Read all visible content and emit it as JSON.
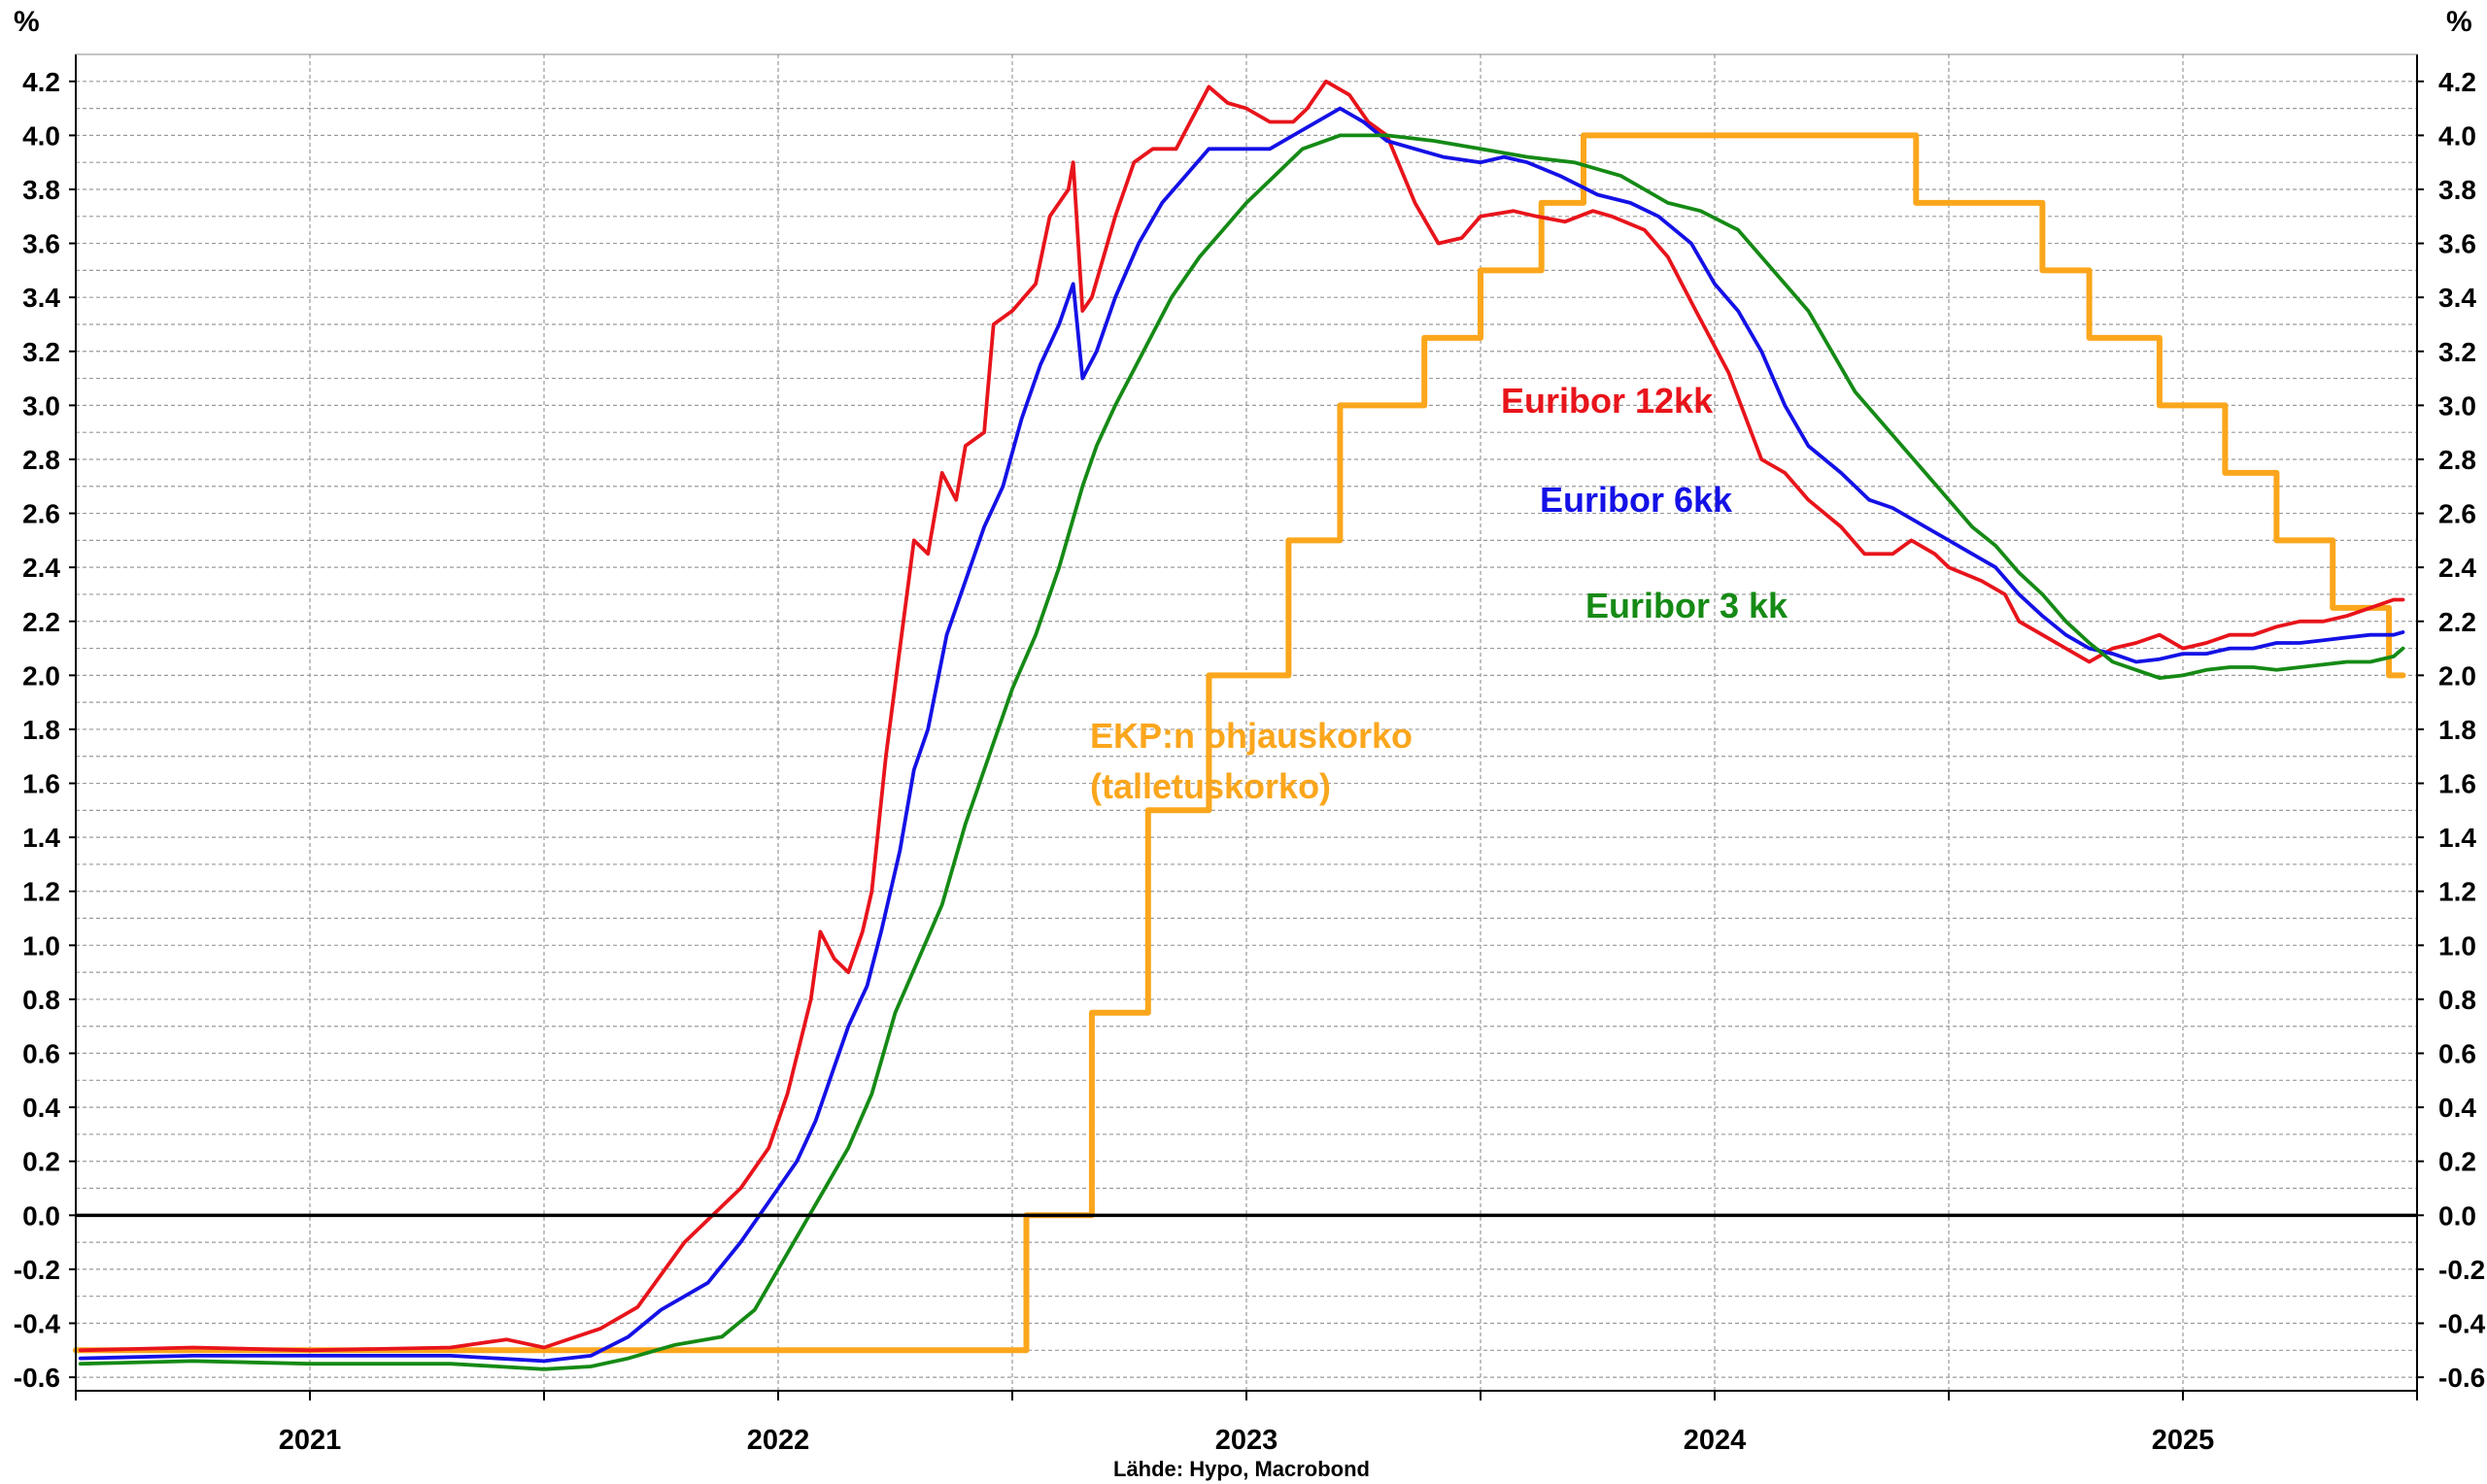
{
  "chart_data": {
    "type": "line",
    "y_unit_left": "%",
    "y_unit_right": "%",
    "source": "Lähde: Hypo, Macrobond",
    "ylim": [
      -0.65,
      4.3
    ],
    "y_ticks": [
      -0.6,
      -0.4,
      -0.2,
      0.0,
      0.2,
      0.4,
      0.6,
      0.8,
      1.0,
      1.2,
      1.4,
      1.6,
      1.8,
      2.0,
      2.2,
      2.4,
      2.6,
      2.8,
      3.0,
      3.2,
      3.4,
      3.6,
      3.8,
      4.0,
      4.2
    ],
    "y_tick_labels": [
      "-0.6",
      "-0.4",
      "-0.2",
      "0.0",
      "0.2",
      "0.4",
      "0.6",
      "0.8",
      "1.0",
      "1.2",
      "1.4",
      "1.6",
      "1.8",
      "2.0",
      "2.2",
      "2.4",
      "2.6",
      "2.8",
      "3.0",
      "3.2",
      "3.4",
      "3.6",
      "3.8",
      "4.0",
      "4.2"
    ],
    "xlim": [
      2020.5,
      2025.5
    ],
    "x_ticks": [
      2021,
      2022,
      2023,
      2024,
      2025
    ],
    "x_tick_labels": [
      "2021",
      "2022",
      "2023",
      "2024",
      "2025"
    ],
    "x_boundaries": [
      2020.5,
      2021.0,
      2021.5,
      2022.0,
      2022.5,
      2023.0,
      2023.5,
      2024.0,
      2024.5,
      2025.0,
      2025.5
    ],
    "grid": true,
    "zero_line": true,
    "series": [
      {
        "name": "Euribor 12kk",
        "color": "#e8141b",
        "label_lines": [
          "Euribor 12kk"
        ],
        "points": [
          [
            2020.51,
            -0.5
          ],
          [
            2020.75,
            -0.49
          ],
          [
            2021.0,
            -0.5
          ],
          [
            2021.3,
            -0.49
          ],
          [
            2021.42,
            -0.46
          ],
          [
            2021.5,
            -0.49
          ],
          [
            2021.62,
            -0.42
          ],
          [
            2021.7,
            -0.34
          ],
          [
            2021.8,
            -0.1
          ],
          [
            2021.92,
            0.1
          ],
          [
            2021.98,
            0.25
          ],
          [
            2022.02,
            0.45
          ],
          [
            2022.07,
            0.8
          ],
          [
            2022.09,
            1.05
          ],
          [
            2022.12,
            0.95
          ],
          [
            2022.15,
            0.9
          ],
          [
            2022.18,
            1.05
          ],
          [
            2022.2,
            1.2
          ],
          [
            2022.23,
            1.7
          ],
          [
            2022.26,
            2.1
          ],
          [
            2022.29,
            2.5
          ],
          [
            2022.32,
            2.45
          ],
          [
            2022.35,
            2.75
          ],
          [
            2022.38,
            2.65
          ],
          [
            2022.4,
            2.85
          ],
          [
            2022.44,
            2.9
          ],
          [
            2022.46,
            3.3
          ],
          [
            2022.5,
            3.35
          ],
          [
            2022.55,
            3.45
          ],
          [
            2022.58,
            3.7
          ],
          [
            2022.62,
            3.8
          ],
          [
            2022.63,
            3.9
          ],
          [
            2022.65,
            3.35
          ],
          [
            2022.67,
            3.4
          ],
          [
            2022.72,
            3.7
          ],
          [
            2022.76,
            3.9
          ],
          [
            2022.8,
            3.95
          ],
          [
            2022.85,
            3.95
          ],
          [
            2022.88,
            4.05
          ],
          [
            2022.92,
            4.18
          ],
          [
            2022.96,
            4.12
          ],
          [
            2023.0,
            4.1
          ],
          [
            2023.05,
            4.05
          ],
          [
            2023.1,
            4.05
          ],
          [
            2023.13,
            4.1
          ],
          [
            2023.17,
            4.2
          ],
          [
            2023.22,
            4.15
          ],
          [
            2023.26,
            4.05
          ],
          [
            2023.3,
            4.0
          ],
          [
            2023.36,
            3.75
          ],
          [
            2023.41,
            3.6
          ],
          [
            2023.46,
            3.62
          ],
          [
            2023.5,
            3.7
          ],
          [
            2023.57,
            3.72
          ],
          [
            2023.62,
            3.7
          ],
          [
            2023.68,
            3.68
          ],
          [
            2023.74,
            3.72
          ],
          [
            2023.78,
            3.7
          ],
          [
            2023.85,
            3.65
          ],
          [
            2023.9,
            3.55
          ],
          [
            2023.96,
            3.35
          ],
          [
            2024.03,
            3.12
          ],
          [
            2024.1,
            2.8
          ],
          [
            2024.15,
            2.75
          ],
          [
            2024.2,
            2.65
          ],
          [
            2024.27,
            2.55
          ],
          [
            2024.32,
            2.45
          ],
          [
            2024.38,
            2.45
          ],
          [
            2024.42,
            2.5
          ],
          [
            2024.47,
            2.45
          ],
          [
            2024.5,
            2.4
          ],
          [
            2024.57,
            2.35
          ],
          [
            2024.62,
            2.3
          ],
          [
            2024.65,
            2.2
          ],
          [
            2024.7,
            2.15
          ],
          [
            2024.75,
            2.1
          ],
          [
            2024.8,
            2.05
          ],
          [
            2024.85,
            2.1
          ],
          [
            2024.9,
            2.12
          ],
          [
            2024.95,
            2.15
          ],
          [
            2025.0,
            2.1
          ],
          [
            2025.05,
            2.12
          ],
          [
            2025.1,
            2.15
          ],
          [
            2025.15,
            2.15
          ],
          [
            2025.2,
            2.18
          ],
          [
            2025.25,
            2.2
          ],
          [
            2025.3,
            2.2
          ],
          [
            2025.35,
            2.22
          ],
          [
            2025.4,
            2.25
          ],
          [
            2025.45,
            2.28
          ],
          [
            2025.47,
            2.28
          ]
        ]
      },
      {
        "name": "Euribor 6kk",
        "color": "#1411e6",
        "label_lines": [
          "Euribor 6kk"
        ],
        "points": [
          [
            2020.51,
            -0.53
          ],
          [
            2020.75,
            -0.52
          ],
          [
            2021.0,
            -0.52
          ],
          [
            2021.3,
            -0.52
          ],
          [
            2021.5,
            -0.54
          ],
          [
            2021.6,
            -0.52
          ],
          [
            2021.68,
            -0.45
          ],
          [
            2021.75,
            -0.35
          ],
          [
            2021.85,
            -0.25
          ],
          [
            2021.92,
            -0.1
          ],
          [
            2021.98,
            0.05
          ],
          [
            2022.04,
            0.2
          ],
          [
            2022.08,
            0.35
          ],
          [
            2022.12,
            0.55
          ],
          [
            2022.15,
            0.7
          ],
          [
            2022.19,
            0.85
          ],
          [
            2022.22,
            1.05
          ],
          [
            2022.26,
            1.35
          ],
          [
            2022.29,
            1.65
          ],
          [
            2022.32,
            1.8
          ],
          [
            2022.36,
            2.15
          ],
          [
            2022.4,
            2.35
          ],
          [
            2022.44,
            2.55
          ],
          [
            2022.48,
            2.7
          ],
          [
            2022.52,
            2.95
          ],
          [
            2022.56,
            3.15
          ],
          [
            2022.6,
            3.3
          ],
          [
            2022.63,
            3.45
          ],
          [
            2022.65,
            3.1
          ],
          [
            2022.68,
            3.2
          ],
          [
            2022.72,
            3.4
          ],
          [
            2022.77,
            3.6
          ],
          [
            2022.82,
            3.75
          ],
          [
            2022.87,
            3.85
          ],
          [
            2022.92,
            3.95
          ],
          [
            2022.98,
            3.95
          ],
          [
            2023.05,
            3.95
          ],
          [
            2023.1,
            4.0
          ],
          [
            2023.15,
            4.05
          ],
          [
            2023.2,
            4.1
          ],
          [
            2023.25,
            4.05
          ],
          [
            2023.3,
            3.98
          ],
          [
            2023.36,
            3.95
          ],
          [
            2023.42,
            3.92
          ],
          [
            2023.5,
            3.9
          ],
          [
            2023.55,
            3.92
          ],
          [
            2023.6,
            3.9
          ],
          [
            2023.67,
            3.85
          ],
          [
            2023.75,
            3.78
          ],
          [
            2023.82,
            3.75
          ],
          [
            2023.88,
            3.7
          ],
          [
            2023.95,
            3.6
          ],
          [
            2024.0,
            3.45
          ],
          [
            2024.05,
            3.35
          ],
          [
            2024.1,
            3.2
          ],
          [
            2024.15,
            3.0
          ],
          [
            2024.2,
            2.85
          ],
          [
            2024.27,
            2.75
          ],
          [
            2024.33,
            2.65
          ],
          [
            2024.38,
            2.62
          ],
          [
            2024.45,
            2.55
          ],
          [
            2024.5,
            2.5
          ],
          [
            2024.55,
            2.45
          ],
          [
            2024.6,
            2.4
          ],
          [
            2024.65,
            2.3
          ],
          [
            2024.7,
            2.22
          ],
          [
            2024.75,
            2.15
          ],
          [
            2024.8,
            2.1
          ],
          [
            2024.85,
            2.08
          ],
          [
            2024.9,
            2.05
          ],
          [
            2024.95,
            2.06
          ],
          [
            2025.0,
            2.08
          ],
          [
            2025.05,
            2.08
          ],
          [
            2025.1,
            2.1
          ],
          [
            2025.15,
            2.1
          ],
          [
            2025.2,
            2.12
          ],
          [
            2025.25,
            2.12
          ],
          [
            2025.3,
            2.13
          ],
          [
            2025.35,
            2.14
          ],
          [
            2025.4,
            2.15
          ],
          [
            2025.45,
            2.15
          ],
          [
            2025.47,
            2.16
          ]
        ]
      },
      {
        "name": "Euribor 3 kk",
        "color": "#158a15",
        "label_lines": [
          "Euribor 3 kk"
        ],
        "points": [
          [
            2020.51,
            -0.55
          ],
          [
            2020.75,
            -0.54
          ],
          [
            2021.0,
            -0.55
          ],
          [
            2021.3,
            -0.55
          ],
          [
            2021.5,
            -0.57
          ],
          [
            2021.6,
            -0.56
          ],
          [
            2021.68,
            -0.53
          ],
          [
            2021.78,
            -0.48
          ],
          [
            2021.88,
            -0.45
          ],
          [
            2021.95,
            -0.35
          ],
          [
            2022.0,
            -0.2
          ],
          [
            2022.05,
            -0.05
          ],
          [
            2022.1,
            0.1
          ],
          [
            2022.15,
            0.25
          ],
          [
            2022.2,
            0.45
          ],
          [
            2022.25,
            0.75
          ],
          [
            2022.3,
            0.95
          ],
          [
            2022.35,
            1.15
          ],
          [
            2022.4,
            1.45
          ],
          [
            2022.45,
            1.7
          ],
          [
            2022.5,
            1.95
          ],
          [
            2022.55,
            2.15
          ],
          [
            2022.6,
            2.4
          ],
          [
            2022.65,
            2.7
          ],
          [
            2022.68,
            2.85
          ],
          [
            2022.72,
            3.0
          ],
          [
            2022.78,
            3.2
          ],
          [
            2022.84,
            3.4
          ],
          [
            2022.9,
            3.55
          ],
          [
            2022.95,
            3.65
          ],
          [
            2023.0,
            3.75
          ],
          [
            2023.06,
            3.85
          ],
          [
            2023.12,
            3.95
          ],
          [
            2023.2,
            4.0
          ],
          [
            2023.3,
            4.0
          ],
          [
            2023.4,
            3.98
          ],
          [
            2023.5,
            3.95
          ],
          [
            2023.6,
            3.92
          ],
          [
            2023.7,
            3.9
          ],
          [
            2023.8,
            3.85
          ],
          [
            2023.9,
            3.75
          ],
          [
            2023.97,
            3.72
          ],
          [
            2024.05,
            3.65
          ],
          [
            2024.1,
            3.55
          ],
          [
            2024.15,
            3.45
          ],
          [
            2024.2,
            3.35
          ],
          [
            2024.25,
            3.2
          ],
          [
            2024.3,
            3.05
          ],
          [
            2024.35,
            2.95
          ],
          [
            2024.4,
            2.85
          ],
          [
            2024.45,
            2.75
          ],
          [
            2024.5,
            2.65
          ],
          [
            2024.55,
            2.55
          ],
          [
            2024.6,
            2.48
          ],
          [
            2024.65,
            2.38
          ],
          [
            2024.7,
            2.3
          ],
          [
            2024.75,
            2.2
          ],
          [
            2024.8,
            2.12
          ],
          [
            2024.85,
            2.05
          ],
          [
            2024.9,
            2.02
          ],
          [
            2024.95,
            1.99
          ],
          [
            2025.0,
            2.0
          ],
          [
            2025.05,
            2.02
          ],
          [
            2025.1,
            2.03
          ],
          [
            2025.15,
            2.03
          ],
          [
            2025.2,
            2.02
          ],
          [
            2025.25,
            2.03
          ],
          [
            2025.3,
            2.04
          ],
          [
            2025.35,
            2.05
          ],
          [
            2025.4,
            2.05
          ],
          [
            2025.45,
            2.07
          ],
          [
            2025.47,
            2.1
          ]
        ]
      },
      {
        "name": "EKP:n ohjauskorko (talletuskorko)",
        "color": "#fba61c",
        "label_lines": [
          "EKP:n ohjauskorko",
          "(talletuskorko)"
        ],
        "step": true,
        "points": [
          [
            2020.5,
            -0.5
          ],
          [
            2022.53,
            0.0
          ],
          [
            2022.67,
            0.75
          ],
          [
            2022.79,
            1.5
          ],
          [
            2022.92,
            2.0
          ],
          [
            2023.09,
            2.5
          ],
          [
            2023.2,
            3.0
          ],
          [
            2023.38,
            3.25
          ],
          [
            2023.5,
            3.5
          ],
          [
            2023.63,
            3.75
          ],
          [
            2023.72,
            4.0
          ],
          [
            2024.43,
            3.75
          ],
          [
            2024.7,
            3.5
          ],
          [
            2024.8,
            3.25
          ],
          [
            2024.95,
            3.0
          ],
          [
            2025.09,
            2.75
          ],
          [
            2025.2,
            2.5
          ],
          [
            2025.32,
            2.25
          ],
          [
            2025.44,
            2.0
          ],
          [
            2025.47,
            2.0
          ]
        ]
      }
    ]
  }
}
